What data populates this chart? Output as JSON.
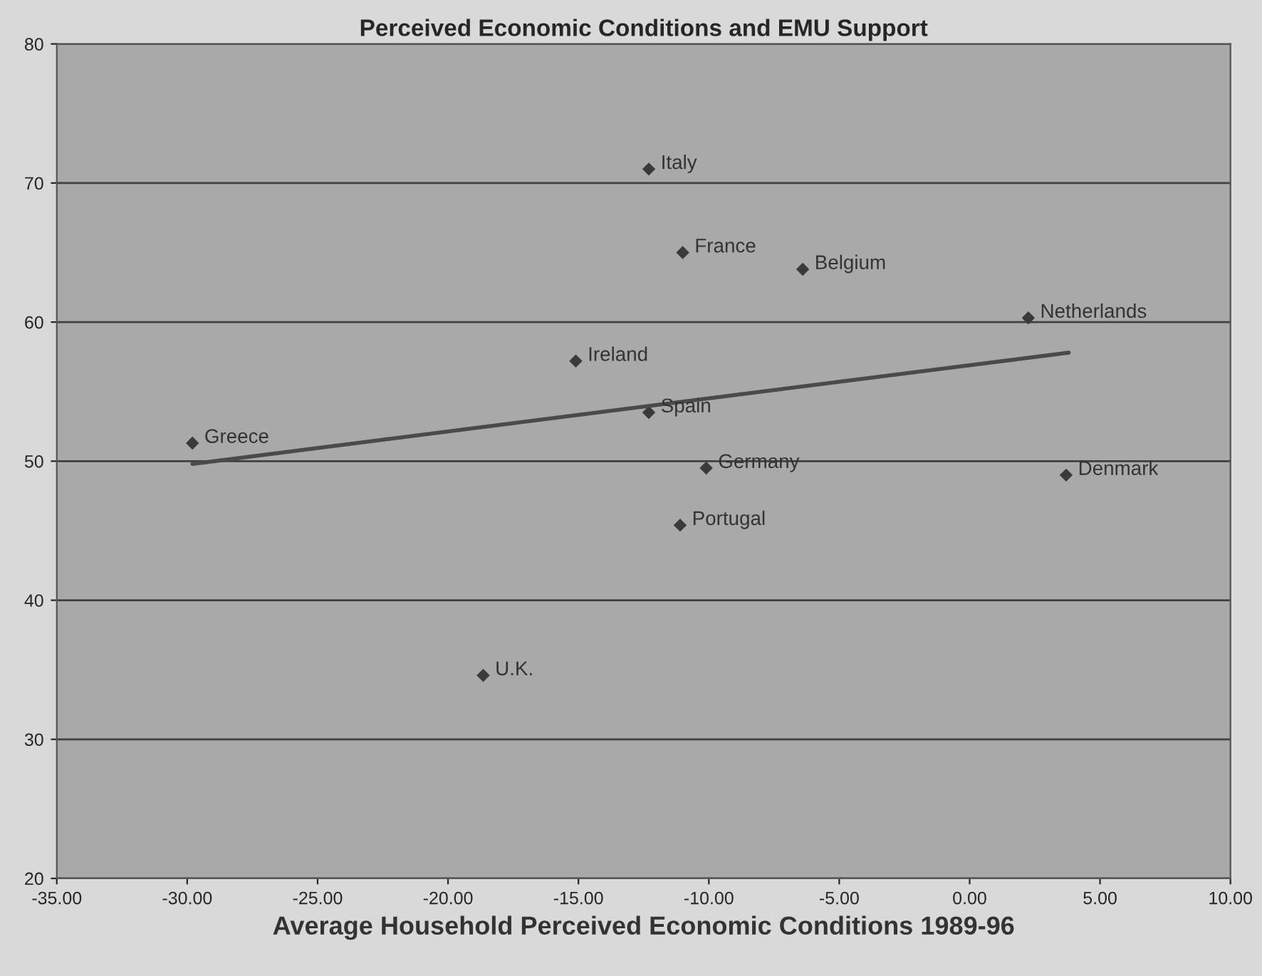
{
  "chart_data": {
    "type": "scatter",
    "title": "Perceived Economic Conditions and EMU Support",
    "xlabel": "Average Household Perceived Economic Conditions 1989-96",
    "series": [
      {
        "color": "#3a3a3a",
        "marker": "diamond",
        "x": [
          -29.8,
          -12.3,
          -11.0,
          -6.4,
          2.25,
          -15.1,
          -12.3,
          -10.1,
          3.7,
          -11.1,
          -18.65
        ],
        "values": [
          51.3,
          71.0,
          65.0,
          63.8,
          60.3,
          57.2,
          53.5,
          49.5,
          49.0,
          45.4,
          34.6
        ]
      },
      {
        "type": "line",
        "color": "#4a4a4a",
        "marker": "none",
        "line_style": "solid",
        "x": [
          -29.8,
          3.8
        ],
        "values": [
          49.8,
          57.8
        ]
      }
    ],
    "annotations": [
      {
        "text": "Greece",
        "x": -29.8,
        "y": 51.3
      },
      {
        "text": "Italy",
        "x": -12.3,
        "y": 71.0
      },
      {
        "text": "France",
        "x": -11.0,
        "y": 65.0
      },
      {
        "text": "Belgium",
        "x": -6.4,
        "y": 63.8
      },
      {
        "text": "Netherlands",
        "x": 2.25,
        "y": 60.3
      },
      {
        "text": "Ireland",
        "x": -15.1,
        "y": 57.2
      },
      {
        "text": "Spain",
        "x": -12.3,
        "y": 53.5
      },
      {
        "text": "Germany",
        "x": -10.1,
        "y": 49.5
      },
      {
        "text": "Denmark",
        "x": 3.7,
        "y": 49.0
      },
      {
        "text": "Portugal",
        "x": -11.1,
        "y": 45.4
      },
      {
        "text": "U.K.",
        "x": -18.65,
        "y": 34.6
      }
    ],
    "xlim": [
      -35,
      10
    ],
    "xticks": [
      {
        "value": -35,
        "label": "-35.00"
      },
      {
        "value": -30,
        "label": "-30.00"
      },
      {
        "value": -25,
        "label": "-25.00"
      },
      {
        "value": -20,
        "label": "-20.00"
      },
      {
        "value": -15,
        "label": "-15.00"
      },
      {
        "value": -10,
        "label": "-10.00"
      },
      {
        "value": -5,
        "label": "-5.00"
      },
      {
        "value": 0,
        "label": "0.00"
      },
      {
        "value": 5,
        "label": "5.00"
      },
      {
        "value": 10,
        "label": "10.00"
      }
    ],
    "ylim": [
      20,
      80
    ],
    "yticks": [
      20,
      30,
      40,
      50,
      60,
      70,
      80
    ],
    "grid": "y",
    "legend": false
  }
}
